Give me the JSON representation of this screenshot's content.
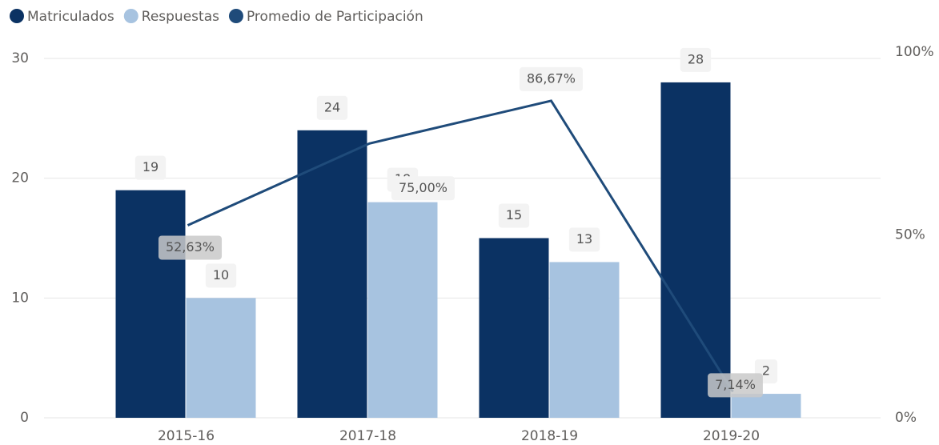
{
  "chart_data": {
    "type": "bar_line",
    "categories": [
      "2015-16",
      "2017-18",
      "2018-19",
      "2019-20"
    ],
    "series": [
      {
        "name": "Matriculados",
        "color": "#0b3263",
        "values": [
          19,
          24,
          15,
          28
        ]
      },
      {
        "name": "Respuestas",
        "color": "#a7c3e0",
        "values": [
          10,
          18,
          13,
          2
        ]
      },
      {
        "name": "Promedio de Participación",
        "color": "#1f4b7a",
        "axis": "y2",
        "values": [
          52.63,
          75,
          86.67,
          7.14
        ],
        "value_labels": [
          "52,63%",
          "75,00%",
          "86,67%",
          "7,14%"
        ]
      }
    ],
    "ylim": [
      0,
      30
    ],
    "yticks": [
      0,
      10,
      20,
      30
    ],
    "y2lim": [
      0,
      100
    ],
    "y2ticks": [
      {
        "value": 0,
        "label": "0%"
      },
      {
        "value": 50,
        "label": "50%"
      },
      {
        "value": 100,
        "label": "100%"
      }
    ],
    "grid": true,
    "legend": "top-left"
  }
}
